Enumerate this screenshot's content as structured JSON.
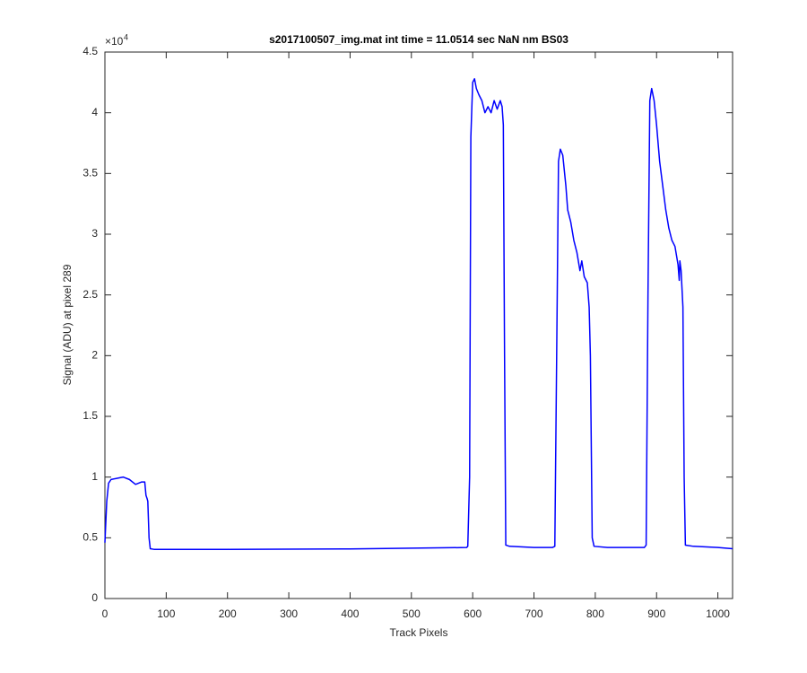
{
  "chart_data": {
    "type": "line",
    "title": "s2017100507_img.mat int time = 11.0514 sec  NaN nm BS03",
    "x_label": "Track Pixels",
    "y_label": "Signal (ADU) at pixel 289",
    "y_multiplier": {
      "base": "×10",
      "exponent": "4"
    },
    "xlim": [
      0,
      1024
    ],
    "ylim": [
      0,
      45000
    ],
    "xticks": [
      0,
      100,
      200,
      300,
      400,
      500,
      600,
      700,
      800,
      900,
      1000
    ],
    "yticks": [
      0,
      {
        "value": 5000,
        "label": "0.5"
      },
      {
        "value": 10000,
        "label": "1"
      },
      {
        "value": 15000,
        "label": "1.5"
      },
      {
        "value": 20000,
        "label": "2"
      },
      {
        "value": 25000,
        "label": "2.5"
      },
      {
        "value": 30000,
        "label": "3"
      },
      {
        "value": 35000,
        "label": "3.5"
      },
      {
        "value": 40000,
        "label": "4"
      },
      {
        "value": 45000,
        "label": "4.5"
      }
    ],
    "grid": false,
    "x": [
      0,
      3,
      6,
      10,
      20,
      30,
      40,
      50,
      55,
      60,
      65,
      67,
      69,
      70,
      72,
      74,
      80,
      200,
      400,
      590,
      592,
      595,
      597,
      600,
      603,
      606,
      610,
      615,
      620,
      625,
      630,
      635,
      640,
      645,
      648,
      650,
      652,
      654,
      660,
      700,
      730,
      734,
      737,
      740,
      743,
      747,
      752,
      755,
      760,
      765,
      770,
      775,
      778,
      782,
      787,
      790,
      792,
      795,
      798,
      820,
      880,
      883,
      886,
      889,
      892,
      896,
      900,
      905,
      910,
      915,
      920,
      925,
      930,
      935,
      937,
      938,
      940,
      943,
      945,
      947,
      960,
      1000,
      1024
    ],
    "series": [
      {
        "color": "#0000ff",
        "values": [
          4600,
          8000,
          9500,
          9800,
          9900,
          10000,
          9800,
          9400,
          9500,
          9600,
          9600,
          8500,
          8200,
          8000,
          5000,
          4100,
          4050,
          4050,
          4080,
          4200,
          4300,
          10000,
          38000,
          42500,
          42800,
          42000,
          41500,
          41000,
          40000,
          40500,
          40000,
          41000,
          40300,
          41000,
          40500,
          39000,
          20000,
          4400,
          4300,
          4200,
          4200,
          4300,
          20000,
          36000,
          37000,
          36500,
          34000,
          32000,
          31000,
          29500,
          28500,
          27000,
          27800,
          26500,
          26000,
          24000,
          20000,
          5000,
          4300,
          4200,
          4200,
          4400,
          25000,
          41000,
          42000,
          41000,
          39000,
          36000,
          34000,
          32000,
          30500,
          29500,
          29000,
          27500,
          26200,
          27800,
          27000,
          24000,
          10000,
          4400,
          4300,
          4200,
          4100
        ]
      }
    ]
  }
}
